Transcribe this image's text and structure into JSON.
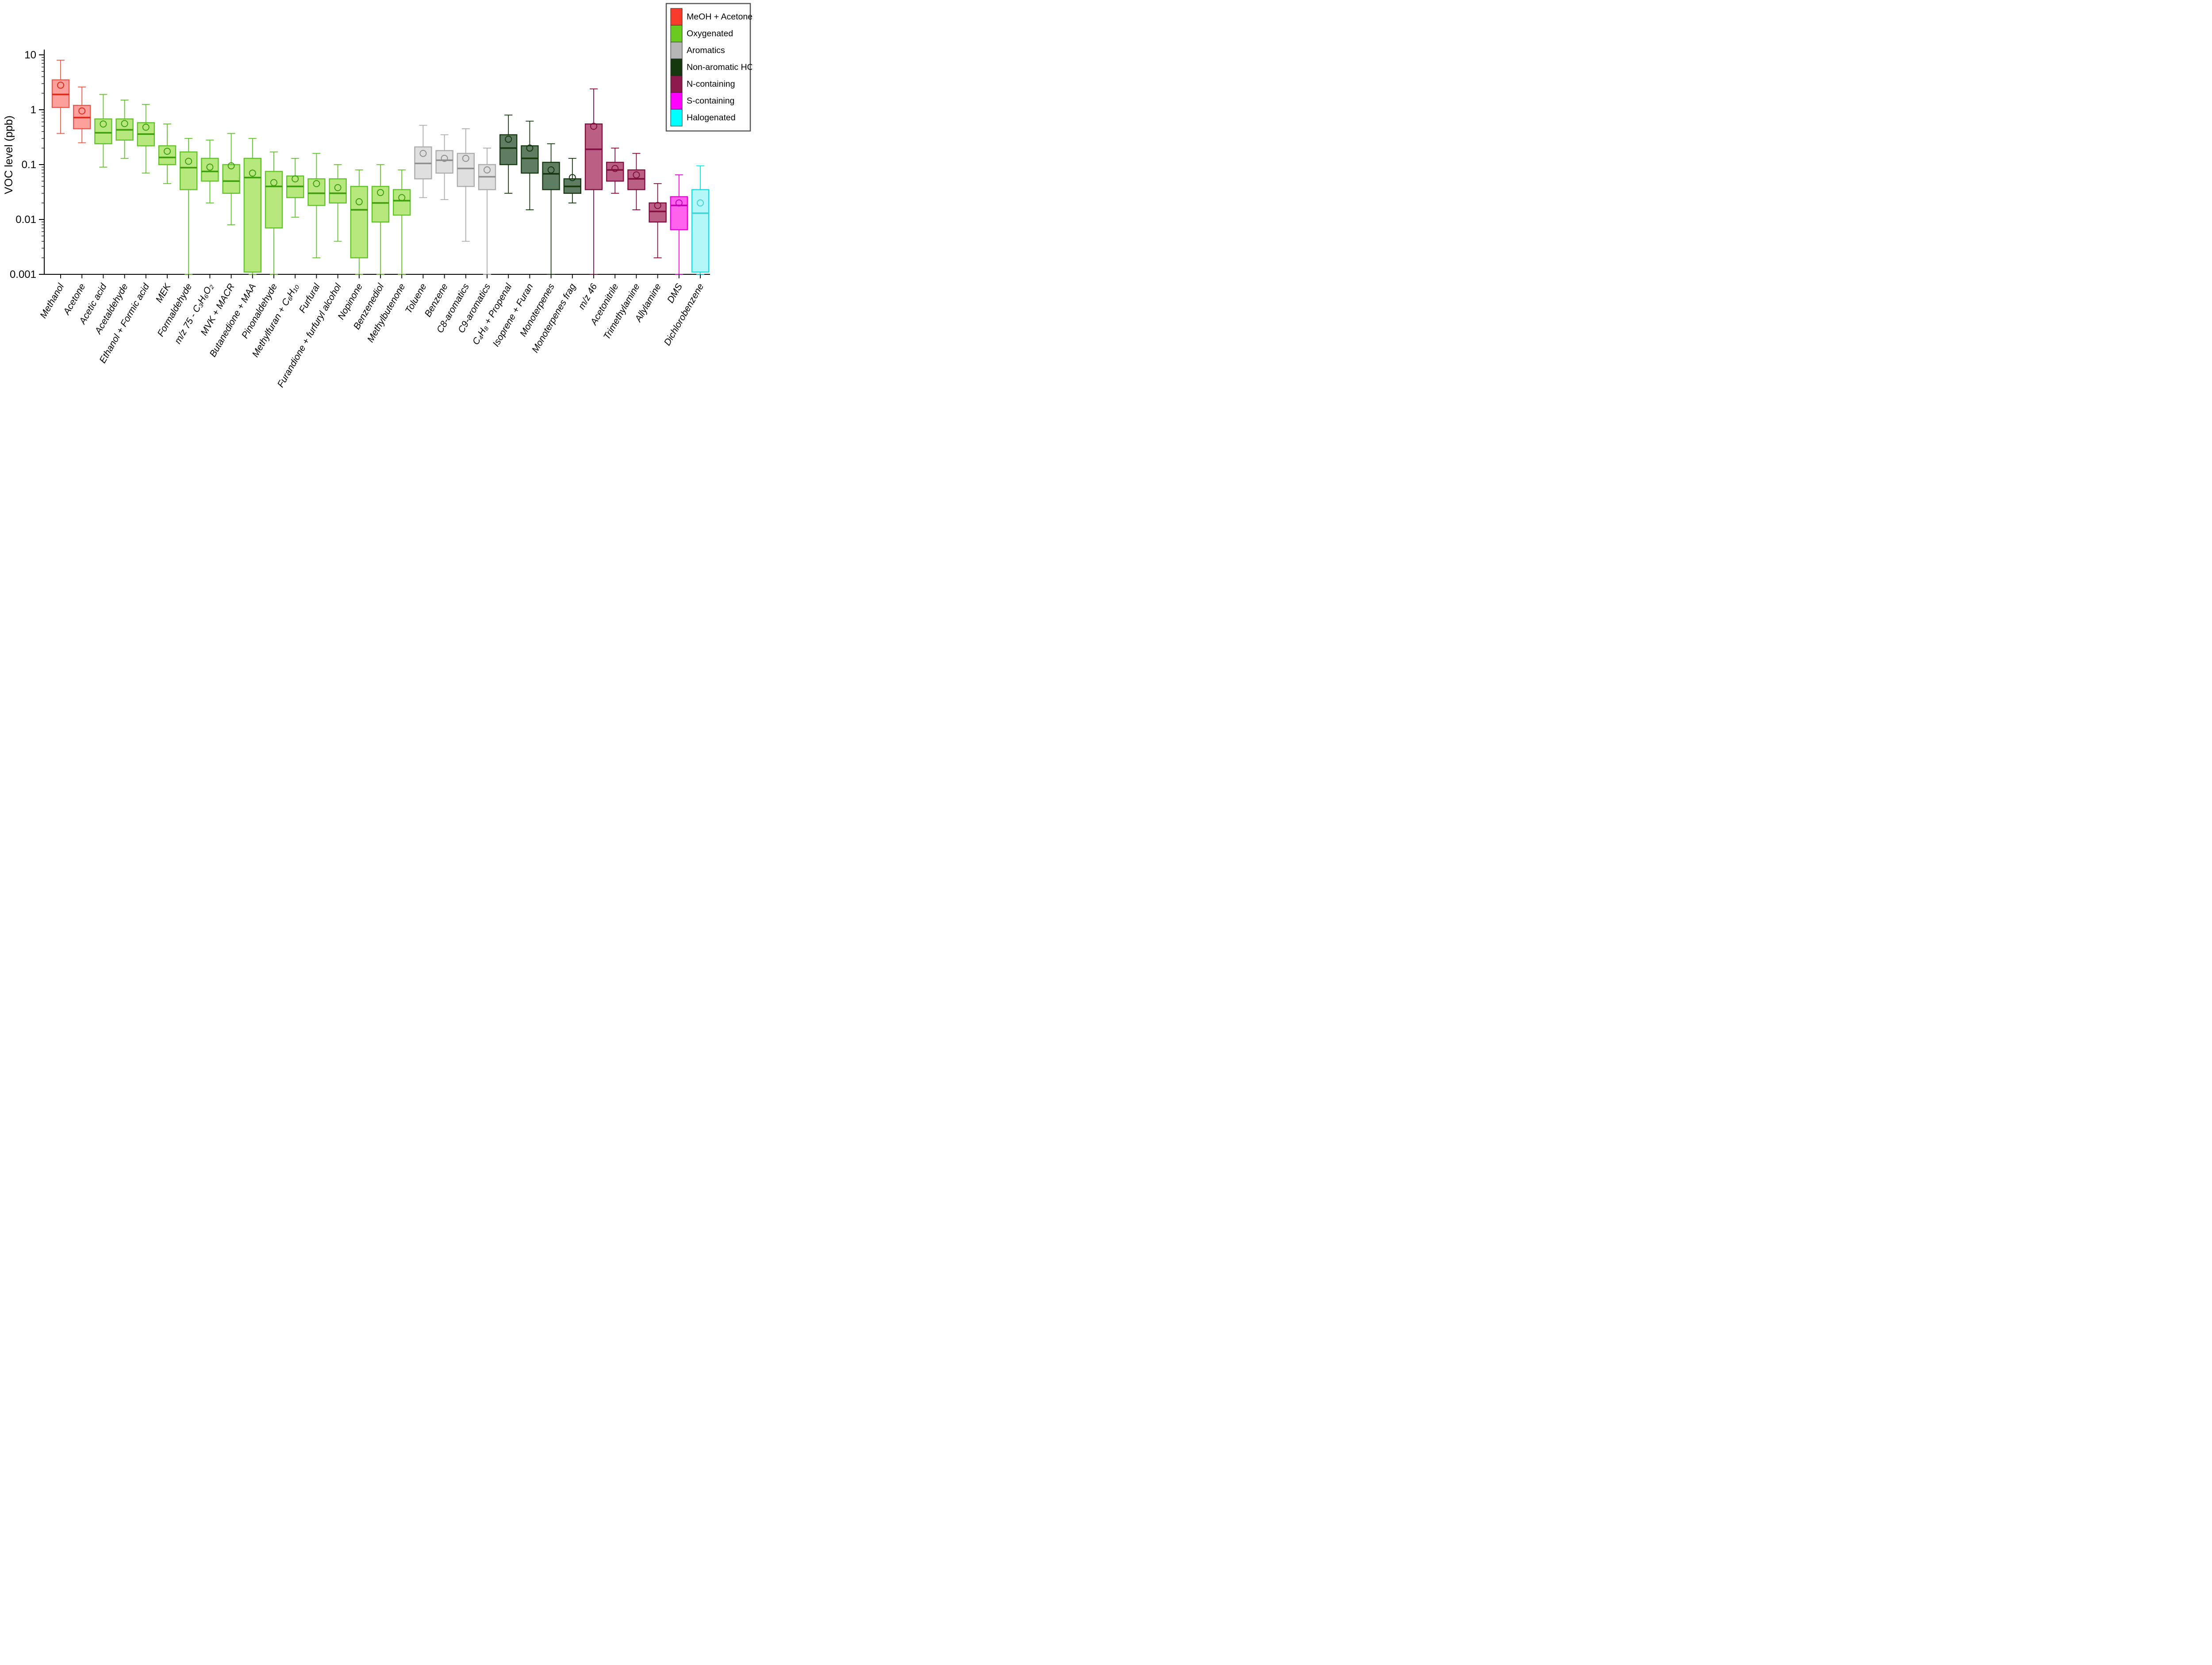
{
  "chart_data": {
    "type": "box",
    "title": "",
    "xlabel": "",
    "ylabel": "VOC level (ppb)",
    "yscale": "log",
    "ylim": [
      0.001,
      10
    ],
    "yticks": [
      0.001,
      0.01,
      0.1,
      1,
      10
    ],
    "ytick_labels": [
      "0.001",
      "0.01",
      "0.1",
      "1",
      "10"
    ],
    "grid": false,
    "legend_position": "top-right",
    "legend_order": [
      "meoh_acetone",
      "oxygenated",
      "aromatics",
      "non_aromatic_hc",
      "n_containing",
      "s_containing",
      "halogenated"
    ],
    "groups": {
      "meoh_acetone": {
        "label": "MeOH + Acetone",
        "swatch": "#F93B2B",
        "fill": "#FBA09A",
        "stroke": "#F4564B",
        "line": "#DE2A1E"
      },
      "oxygenated": {
        "label": "Oxygenated",
        "swatch": "#69CB20",
        "fill": "#B6E87E",
        "stroke": "#62C328",
        "line": "#3E9E0D"
      },
      "aromatics": {
        "label": "Aromatics",
        "swatch": "#B5B5B5",
        "fill": "#DFDFDF",
        "stroke": "#ACACAC",
        "line": "#8F8F8F"
      },
      "non_aromatic_hc": {
        "label": "Non-aromatic HC",
        "swatch": "#16380E",
        "fill": "#5E7D62",
        "stroke": "#16380E",
        "line": "#16380E"
      },
      "n_containing": {
        "label": "N-containing",
        "swatch": "#8C1A4B",
        "fill": "#B96084",
        "stroke": "#820D3F",
        "line": "#820D3F"
      },
      "s_containing": {
        "label": "S-containing",
        "swatch": "#FF00FF",
        "fill": "#FF63ED",
        "stroke": "#ED00DB",
        "line": "#C400B6"
      },
      "halogenated": {
        "label": "Halogenated",
        "swatch": "#00FFFF",
        "fill": "#B3F7F9",
        "stroke": "#0BE3E6",
        "line": "#49CFD6"
      }
    },
    "boxes": [
      {
        "label": "Methanol",
        "group": "meoh_acetone",
        "low": 0.37,
        "q1": 1.1,
        "median": 1.9,
        "q3": 3.5,
        "high": 8.0,
        "mean": 2.8
      },
      {
        "label": "Acetone",
        "group": "meoh_acetone",
        "low": 0.25,
        "q1": 0.45,
        "median": 0.72,
        "q3": 1.2,
        "high": 2.6,
        "mean": 0.95
      },
      {
        "label": "Acetic acid",
        "group": "oxygenated",
        "low": 0.09,
        "q1": 0.24,
        "median": 0.38,
        "q3": 0.68,
        "high": 1.9,
        "mean": 0.55
      },
      {
        "label": "Acetaldehyde",
        "group": "oxygenated",
        "low": 0.13,
        "q1": 0.28,
        "median": 0.43,
        "q3": 0.68,
        "high": 1.5,
        "mean": 0.56
      },
      {
        "label": "Ethanol + Formic acid",
        "group": "oxygenated",
        "low": 0.07,
        "q1": 0.22,
        "median": 0.36,
        "q3": 0.58,
        "high": 1.25,
        "mean": 0.48
      },
      {
        "label": "MEK",
        "group": "oxygenated",
        "low": 0.045,
        "q1": 0.1,
        "median": 0.135,
        "q3": 0.22,
        "high": 0.55,
        "mean": 0.175
      },
      {
        "label": "Formaldehyde",
        "group": "oxygenated",
        "low": 0.001,
        "q1": 0.035,
        "median": 0.088,
        "q3": 0.17,
        "high": 0.3,
        "mean": 0.115
      },
      {
        "label": "m/z 75 - C₃H₆O₂",
        "group": "oxygenated",
        "low": 0.02,
        "q1": 0.05,
        "median": 0.075,
        "q3": 0.13,
        "high": 0.28,
        "mean": 0.09
      },
      {
        "label": "MVK + MACR",
        "group": "oxygenated",
        "low": 0.008,
        "q1": 0.03,
        "median": 0.05,
        "q3": 0.1,
        "high": 0.37,
        "mean": 0.095
      },
      {
        "label": "Butanedione + MAA",
        "group": "oxygenated",
        "low": 0.001,
        "q1": 0.0011,
        "median": 0.058,
        "q3": 0.13,
        "high": 0.3,
        "mean": 0.07
      },
      {
        "label": "Pinonaldehyde",
        "group": "oxygenated",
        "low": 0.001,
        "q1": 0.007,
        "median": 0.04,
        "q3": 0.075,
        "high": 0.17,
        "mean": 0.047
      },
      {
        "label": "Methylfuran + C₆H₁₀",
        "group": "oxygenated",
        "low": 0.011,
        "q1": 0.025,
        "median": 0.04,
        "q3": 0.062,
        "high": 0.13,
        "mean": 0.055
      },
      {
        "label": "Furfural",
        "group": "oxygenated",
        "low": 0.002,
        "q1": 0.018,
        "median": 0.03,
        "q3": 0.055,
        "high": 0.16,
        "mean": 0.045
      },
      {
        "label": "Furandione + furfuryl alcohol",
        "group": "oxygenated",
        "low": 0.004,
        "q1": 0.02,
        "median": 0.03,
        "q3": 0.055,
        "high": 0.1,
        "mean": 0.038
      },
      {
        "label": "Nopinone",
        "group": "oxygenated",
        "low": 0.001,
        "q1": 0.002,
        "median": 0.015,
        "q3": 0.04,
        "high": 0.08,
        "mean": 0.021
      },
      {
        "label": "Benzenediol",
        "group": "oxygenated",
        "low": 0.001,
        "q1": 0.009,
        "median": 0.02,
        "q3": 0.04,
        "high": 0.1,
        "mean": 0.031
      },
      {
        "label": "Methylbutenone",
        "group": "oxygenated",
        "low": 0.001,
        "q1": 0.012,
        "median": 0.022,
        "q3": 0.035,
        "high": 0.08,
        "mean": 0.025
      },
      {
        "label": "Toluene",
        "group": "aromatics",
        "low": 0.025,
        "q1": 0.055,
        "median": 0.105,
        "q3": 0.21,
        "high": 0.52,
        "mean": 0.16
      },
      {
        "label": "Benzene",
        "group": "aromatics",
        "low": 0.023,
        "q1": 0.07,
        "median": 0.12,
        "q3": 0.18,
        "high": 0.35,
        "mean": 0.13
      },
      {
        "label": "C8-aromatics",
        "group": "aromatics",
        "low": 0.004,
        "q1": 0.04,
        "median": 0.085,
        "q3": 0.16,
        "high": 0.45,
        "mean": 0.13
      },
      {
        "label": "C9-aromatics",
        "group": "aromatics",
        "low": 0.001,
        "q1": 0.035,
        "median": 0.06,
        "q3": 0.1,
        "high": 0.2,
        "mean": 0.08
      },
      {
        "label": "C₄H₈ + Propenal",
        "group": "non_aromatic_hc",
        "low": 0.03,
        "q1": 0.1,
        "median": 0.2,
        "q3": 0.35,
        "high": 0.8,
        "mean": 0.29
      },
      {
        "label": "Isoprene + Furan",
        "group": "non_aromatic_hc",
        "low": 0.015,
        "q1": 0.07,
        "median": 0.13,
        "q3": 0.22,
        "high": 0.62,
        "mean": 0.2
      },
      {
        "label": "Monoterpenes",
        "group": "non_aromatic_hc",
        "low": 0.001,
        "q1": 0.035,
        "median": 0.068,
        "q3": 0.11,
        "high": 0.24,
        "mean": 0.08
      },
      {
        "label": "Monoterpenes frag",
        "group": "non_aromatic_hc",
        "low": 0.02,
        "q1": 0.03,
        "median": 0.04,
        "q3": 0.055,
        "high": 0.13,
        "mean": 0.058
      },
      {
        "label": "m/z 46",
        "group": "n_containing",
        "low": 0.001,
        "q1": 0.035,
        "median": 0.19,
        "q3": 0.55,
        "high": 2.4,
        "mean": 0.5
      },
      {
        "label": "Acetonitrile",
        "group": "n_containing",
        "low": 0.03,
        "q1": 0.05,
        "median": 0.08,
        "q3": 0.11,
        "high": 0.2,
        "mean": 0.085
      },
      {
        "label": "Trimethylamine",
        "group": "n_containing",
        "low": 0.015,
        "q1": 0.035,
        "median": 0.055,
        "q3": 0.08,
        "high": 0.16,
        "mean": 0.065
      },
      {
        "label": "Allylamine",
        "group": "n_containing",
        "low": 0.002,
        "q1": 0.009,
        "median": 0.014,
        "q3": 0.02,
        "high": 0.045,
        "mean": 0.018
      },
      {
        "label": "DMS",
        "group": "s_containing",
        "low": 0.001,
        "q1": 0.0065,
        "median": 0.018,
        "q3": 0.026,
        "high": 0.065,
        "mean": 0.02
      },
      {
        "label": "Dichlorobenzene",
        "group": "halogenated",
        "low": 0.001,
        "q1": 0.0011,
        "median": 0.013,
        "q3": 0.035,
        "high": 0.095,
        "mean": 0.02
      }
    ]
  }
}
